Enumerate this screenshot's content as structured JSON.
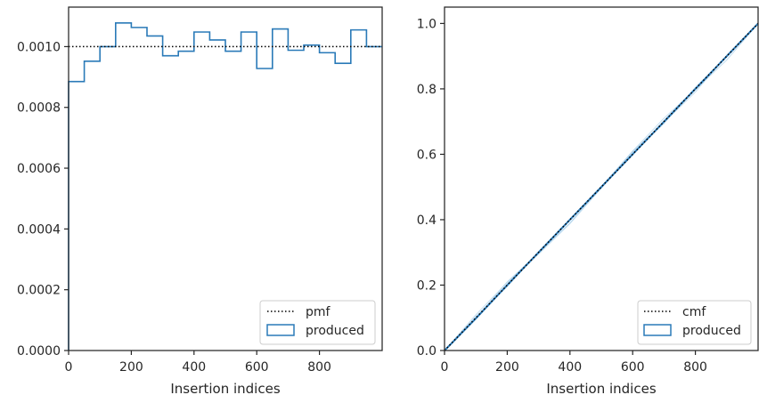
{
  "chart_data": [
    {
      "type": "step",
      "xlabel": "Insertion indices",
      "ylabel": "",
      "xlim": [
        0,
        1000
      ],
      "ylim": [
        0,
        0.00113
      ],
      "x_ticks": [
        0,
        200,
        400,
        600,
        800
      ],
      "x_tick_labels": [
        "0",
        "200",
        "400",
        "600",
        "800"
      ],
      "y_ticks": [
        0,
        0.0002,
        0.0004,
        0.0006,
        0.0008,
        0.001
      ],
      "y_tick_labels": [
        "0.0000",
        "0.0002",
        "0.0004",
        "0.0006",
        "0.0008",
        "0.0010"
      ],
      "legend_position": "lower-right",
      "legend": [
        "pmf",
        "produced"
      ],
      "reference_line": {
        "label": "pmf",
        "style": "dotted",
        "color": "#000000",
        "y": 0.001
      },
      "series": [
        {
          "label": "produced",
          "color": "#2a7ab8",
          "bin_edges": [
            0,
            50,
            100,
            150,
            200,
            250,
            300,
            350,
            400,
            450,
            500,
            550,
            600,
            650,
            700,
            750,
            800,
            850,
            900,
            950,
            1000
          ],
          "values": [
            0.000885,
            0.000952,
            0.001,
            0.001078,
            0.001063,
            0.001035,
            0.00097,
            0.000985,
            0.001048,
            0.001022,
            0.000985,
            0.001048,
            0.000928,
            0.001058,
            0.000988,
            0.001005,
            0.00098,
            0.000945,
            0.001055,
            0.001
          ]
        }
      ]
    },
    {
      "type": "line",
      "xlabel": "Insertion indices",
      "ylabel": "",
      "xlim": [
        0,
        1000
      ],
      "ylim": [
        0,
        1.05
      ],
      "x_ticks": [
        0,
        200,
        400,
        600,
        800
      ],
      "x_tick_labels": [
        "0",
        "200",
        "400",
        "600",
        "800"
      ],
      "y_ticks": [
        0,
        0.2,
        0.4,
        0.6,
        0.8,
        1.0
      ],
      "y_tick_labels": [
        "0.0",
        "0.2",
        "0.4",
        "0.6",
        "0.8",
        "1.0"
      ],
      "legend_position": "lower-right",
      "legend": [
        "cmf",
        "produced"
      ],
      "reference_line": {
        "label": "cmf",
        "style": "dotted",
        "color": "#000000",
        "points": [
          [
            0,
            0
          ],
          [
            1000,
            1
          ]
        ]
      },
      "series": [
        {
          "label": "produced",
          "color": "#2a7ab8",
          "x": [
            0,
            100,
            200,
            300,
            400,
            500,
            600,
            700,
            800,
            900,
            1000
          ],
          "y": [
            0,
            0.098,
            0.2,
            0.3,
            0.4,
            0.5,
            0.6,
            0.7,
            0.8,
            0.9,
            1.0
          ]
        }
      ]
    }
  ]
}
